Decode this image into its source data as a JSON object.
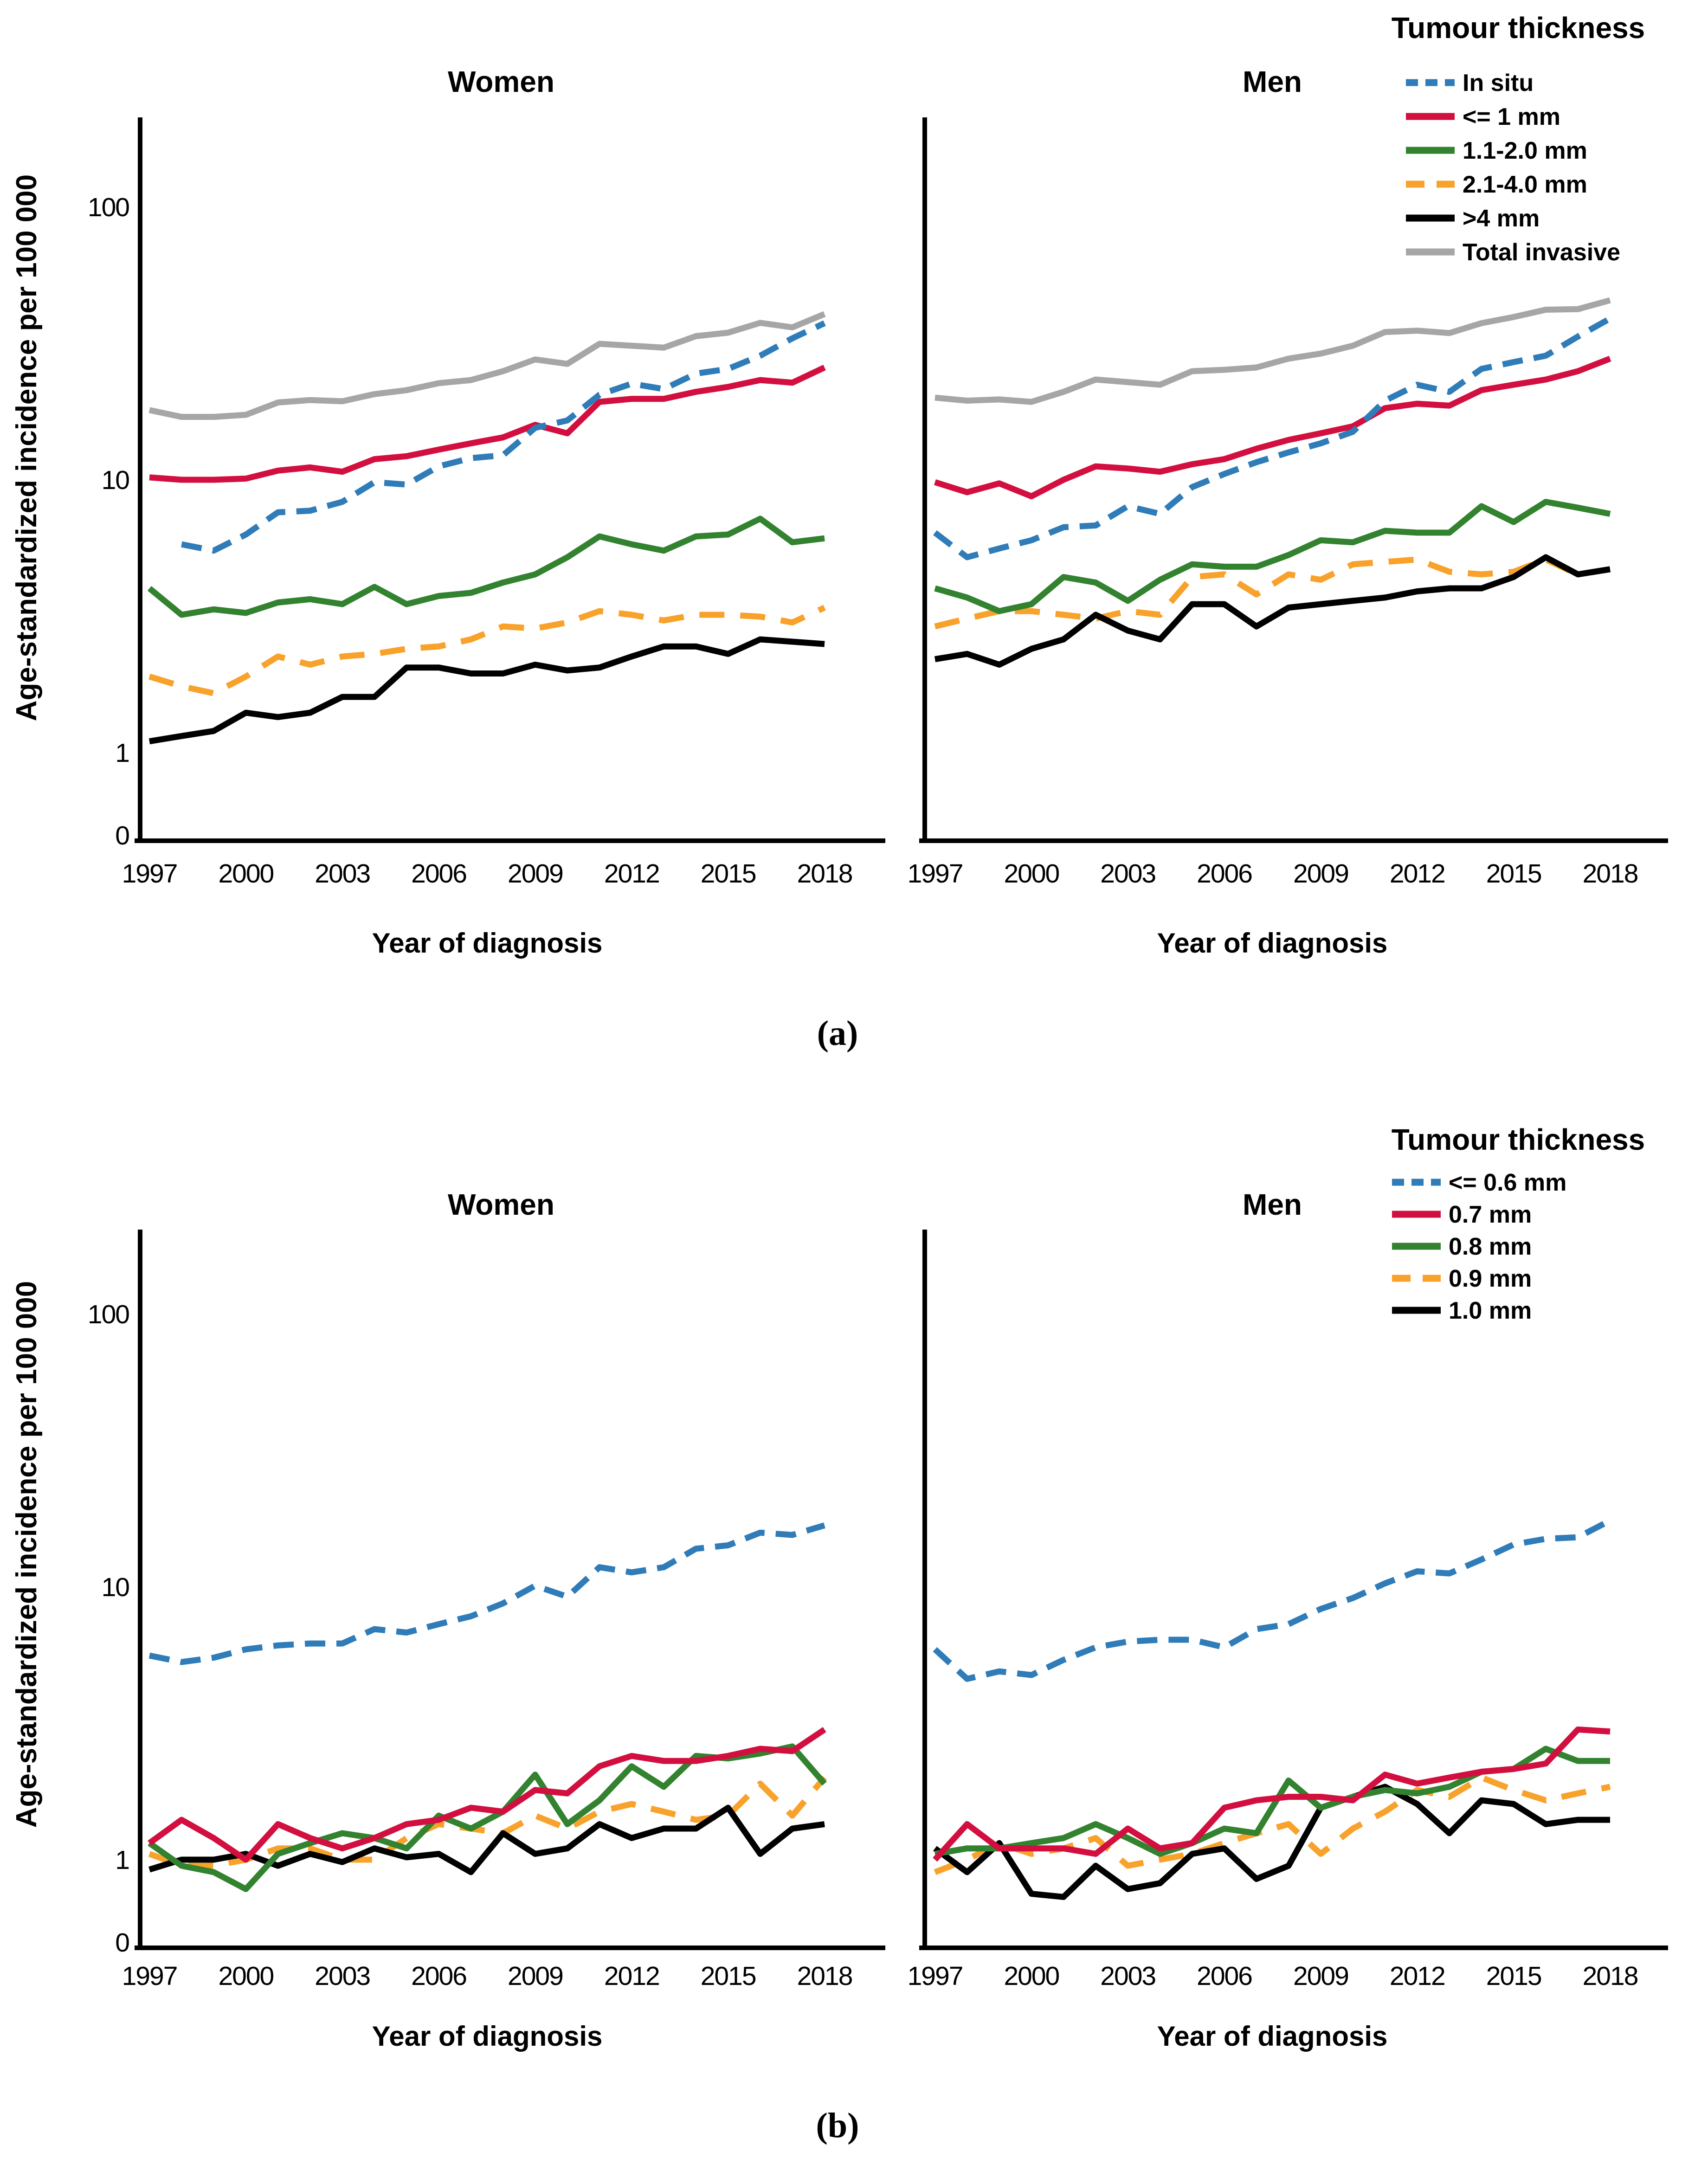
{
  "chart_data": [
    {
      "id": "a",
      "type": "line",
      "yscale": "log",
      "ylim": [
        1,
        100
      ],
      "grid": false,
      "legend_position": "top-right",
      "ylabel": "Age-standardized incidence per 100 000",
      "xlabel": "Year of diagnosis",
      "legend_title": "Tumour thickness",
      "caption": "(a)",
      "x": [
        1997,
        1998,
        1999,
        2000,
        2001,
        2002,
        2003,
        2004,
        2005,
        2006,
        2007,
        2008,
        2009,
        2010,
        2011,
        2012,
        2013,
        2014,
        2015,
        2016,
        2017,
        2018
      ],
      "x_ticks": [
        "1997",
        "2000",
        "2003",
        "2006",
        "2009",
        "2012",
        "2015",
        "2018"
      ],
      "y_ticks": [
        "100",
        "10",
        "1",
        "0"
      ],
      "legend": [
        {
          "label": "In situ",
          "color": "#2F7CB8",
          "dashed": true
        },
        {
          "label": "<= 1 mm",
          "color": "#D20F3F",
          "dashed": false
        },
        {
          "label": "1.1-2.0 mm",
          "color": "#32822F",
          "dashed": false
        },
        {
          "label": "2.1-4.0 mm",
          "color": "#F8A22B",
          "dashed": true
        },
        {
          "label": ">4 mm",
          "color": "#000000",
          "dashed": false
        },
        {
          "label": "Total invasive",
          "color": "#A6A6A6",
          "dashed": false
        }
      ],
      "panels": [
        {
          "title": "Women",
          "series": [
            [
              null,
              5.8,
              5.5,
              6.3,
              7.6,
              7.7,
              8.3,
              9.8,
              9.6,
              11.2,
              12.0,
              12.3,
              15.5,
              16.5,
              20.5,
              22.5,
              21.5,
              24.5,
              25.5,
              28.5,
              33.0,
              37.5
            ],
            [
              10.2,
              10.0,
              10.0,
              10.1,
              10.8,
              11.1,
              10.7,
              11.9,
              12.2,
              12.9,
              13.6,
              14.3,
              15.9,
              14.8,
              19.3,
              19.8,
              19.8,
              21.0,
              21.9,
              23.2,
              22.7,
              25.8
            ],
            [
              4.0,
              3.2,
              3.35,
              3.25,
              3.55,
              3.65,
              3.5,
              4.05,
              3.5,
              3.75,
              3.85,
              4.2,
              4.5,
              5.2,
              6.2,
              5.8,
              5.5,
              6.2,
              6.3,
              7.2,
              5.9,
              6.1
            ],
            [
              1.9,
              1.75,
              1.65,
              1.9,
              2.25,
              2.1,
              2.25,
              2.3,
              2.4,
              2.45,
              2.6,
              2.9,
              2.85,
              3.0,
              3.3,
              3.2,
              3.05,
              3.2,
              3.2,
              3.15,
              3.0,
              3.4
            ],
            [
              1.1,
              1.15,
              1.2,
              1.4,
              1.35,
              1.4,
              1.6,
              1.6,
              2.05,
              2.05,
              1.95,
              1.95,
              2.1,
              2.0,
              2.05,
              2.25,
              2.45,
              2.45,
              2.3,
              2.6,
              2.55,
              2.5
            ],
            [
              18.0,
              17.0,
              17.0,
              17.3,
              19.2,
              19.6,
              19.4,
              20.6,
              21.3,
              22.6,
              23.2,
              25.0,
              27.6,
              26.6,
              31.5,
              31.0,
              30.5,
              33.6,
              34.6,
              37.6,
              36.2,
              40.5
            ]
          ]
        },
        {
          "title": "Men",
          "series": [
            [
              6.4,
              5.2,
              5.6,
              6.0,
              6.7,
              6.8,
              8.0,
              7.5,
              9.4,
              10.5,
              11.6,
              12.6,
              13.6,
              15.0,
              19.5,
              22.3,
              21.0,
              25.5,
              27.0,
              28.5,
              33.5,
              39.0
            ],
            [
              9.8,
              9.0,
              9.7,
              8.7,
              10.0,
              11.2,
              11.0,
              10.7,
              11.4,
              11.9,
              13.0,
              14.0,
              14.8,
              15.7,
              18.3,
              19.0,
              18.7,
              21.3,
              22.3,
              23.3,
              25.0,
              27.8
            ],
            [
              4.0,
              3.7,
              3.3,
              3.5,
              4.4,
              4.2,
              3.6,
              4.3,
              4.9,
              4.8,
              4.8,
              5.3,
              6.0,
              5.9,
              6.5,
              6.4,
              6.4,
              8.0,
              7.0,
              8.3,
              7.9,
              7.5
            ],
            [
              2.9,
              3.1,
              3.3,
              3.3,
              3.2,
              3.1,
              3.3,
              3.2,
              4.4,
              4.5,
              3.8,
              4.5,
              4.3,
              4.9,
              5.0,
              5.1,
              4.6,
              4.5,
              4.6,
              5.1,
              4.5,
              4.7
            ],
            [
              2.2,
              2.3,
              2.1,
              2.4,
              2.6,
              3.2,
              2.8,
              2.6,
              3.5,
              3.5,
              2.9,
              3.4,
              3.5,
              3.6,
              3.7,
              3.9,
              4.0,
              4.0,
              4.4,
              5.2,
              4.5,
              4.7
            ],
            [
              20.0,
              19.5,
              19.7,
              19.3,
              21.0,
              23.3,
              22.8,
              22.3,
              25.0,
              25.3,
              25.8,
              27.8,
              29.0,
              31.0,
              34.8,
              35.2,
              34.5,
              37.5,
              39.5,
              42.0,
              42.2,
              45.5
            ]
          ]
        }
      ]
    },
    {
      "id": "b",
      "type": "line",
      "yscale": "log",
      "ylim": [
        1,
        100
      ],
      "grid": false,
      "legend_position": "top-right",
      "ylabel": "Age-standardized incidence per 100 000",
      "xlabel": "Year of diagnosis",
      "legend_title": "Tumour thickness",
      "caption": "(b)",
      "x": [
        1997,
        1998,
        1999,
        2000,
        2001,
        2002,
        2003,
        2004,
        2005,
        2006,
        2007,
        2008,
        2009,
        2010,
        2011,
        2012,
        2013,
        2014,
        2015,
        2016,
        2017,
        2018
      ],
      "x_ticks": [
        "1997",
        "2000",
        "2003",
        "2006",
        "2009",
        "2012",
        "2015",
        "2018"
      ],
      "y_ticks": [
        "100",
        "10",
        "1",
        "0"
      ],
      "legend": [
        {
          "label": "<= 0.6 mm",
          "color": "#2F7CB8",
          "dashed": true
        },
        {
          "label": "0.7 mm",
          "color": "#D20F3F",
          "dashed": false
        },
        {
          "label": "0.8 mm",
          "color": "#32822F",
          "dashed": false
        },
        {
          "label": "0.9 mm",
          "color": "#F8A22B",
          "dashed": true
        },
        {
          "label": "1.0 mm",
          "color": "#000000",
          "dashed": false
        }
      ],
      "panels": [
        {
          "title": "Women",
          "series": [
            [
              5.6,
              5.3,
              5.5,
              5.9,
              6.1,
              6.2,
              6.2,
              7.0,
              6.8,
              7.3,
              7.8,
              8.7,
              10.1,
              9.2,
              11.8,
              11.3,
              11.8,
              13.8,
              14.2,
              15.8,
              15.5,
              16.8
            ],
            [
              1.15,
              1.4,
              1.2,
              1.0,
              1.35,
              1.2,
              1.1,
              1.2,
              1.35,
              1.4,
              1.55,
              1.5,
              1.8,
              1.75,
              2.2,
              2.4,
              2.3,
              2.3,
              2.4,
              2.55,
              2.5,
              3.0
            ],
            [
              1.15,
              0.95,
              0.9,
              0.78,
              1.05,
              1.15,
              1.25,
              1.2,
              1.1,
              1.45,
              1.3,
              1.5,
              2.05,
              1.35,
              1.65,
              2.2,
              1.85,
              2.4,
              2.35,
              2.45,
              2.6,
              1.9
            ],
            [
              1.05,
              0.95,
              0.95,
              1.0,
              1.1,
              1.1,
              1.0,
              1.0,
              1.2,
              1.35,
              1.3,
              1.25,
              1.45,
              1.3,
              1.5,
              1.6,
              1.5,
              1.4,
              1.45,
              1.9,
              1.45,
              2.0
            ],
            [
              0.92,
              1.0,
              1.0,
              1.05,
              0.95,
              1.05,
              0.98,
              1.1,
              1.02,
              1.05,
              0.9,
              1.25,
              1.05,
              1.1,
              1.35,
              1.2,
              1.3,
              1.3,
              1.55,
              1.05,
              1.3,
              1.35
            ]
          ]
        },
        {
          "title": "Men",
          "series": [
            [
              5.9,
              4.6,
              4.9,
              4.75,
              5.4,
              6.0,
              6.3,
              6.4,
              6.4,
              6.0,
              7.0,
              7.3,
              8.3,
              9.1,
              10.3,
              11.4,
              11.2,
              12.6,
              14.3,
              15.0,
              15.2,
              17.5
            ],
            [
              1.0,
              1.35,
              1.1,
              1.1,
              1.1,
              1.05,
              1.3,
              1.1,
              1.15,
              1.55,
              1.65,
              1.7,
              1.7,
              1.65,
              2.05,
              1.9,
              2.0,
              2.1,
              2.15,
              2.25,
              3.0,
              2.95
            ],
            [
              1.05,
              1.1,
              1.1,
              1.15,
              1.2,
              1.35,
              1.2,
              1.05,
              1.15,
              1.3,
              1.25,
              1.95,
              1.55,
              1.7,
              1.8,
              1.75,
              1.85,
              2.1,
              2.15,
              2.55,
              2.3,
              2.3
            ],
            [
              0.9,
              1.0,
              1.15,
              1.05,
              1.1,
              1.2,
              0.95,
              1.0,
              1.05,
              1.15,
              1.25,
              1.35,
              1.05,
              1.3,
              1.5,
              1.8,
              1.7,
              2.0,
              1.8,
              1.65,
              1.75,
              1.85
            ],
            [
              1.1,
              0.9,
              1.15,
              0.75,
              0.73,
              0.95,
              0.78,
              0.82,
              1.05,
              1.1,
              0.85,
              0.95,
              1.55,
              1.7,
              1.85,
              1.6,
              1.25,
              1.65,
              1.6,
              1.35,
              1.4,
              1.4
            ]
          ]
        }
      ]
    }
  ]
}
